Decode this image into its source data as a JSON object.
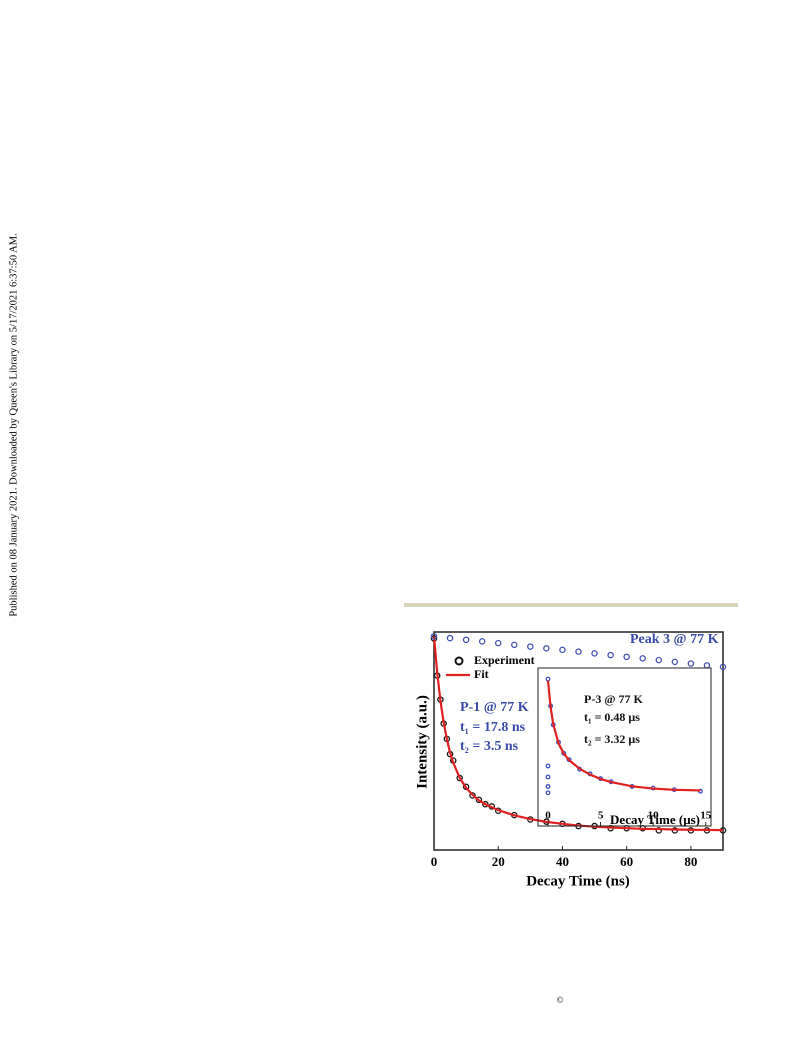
{
  "side_note": "Published on 08 January 2021. Downloaded by Queen's Library on 5/17/2021 6:37:50 AM.",
  "footer": "©",
  "chart_data": [
    {
      "type": "scatter",
      "xlabel": "Decay Time (ns)",
      "ylabel": "Intensity (a.u.)",
      "xlim": [
        0,
        90
      ],
      "ylim": [
        0,
        1
      ],
      "xticks": [
        0,
        20,
        40,
        60,
        80
      ],
      "legend": "upper left",
      "annotations": [
        "Peak 3 @ 77 K",
        "P-1 @ 77 K",
        "t₁ = 17.8 ns",
        "t₂ = 3.5 ns"
      ],
      "series": [
        {
          "name": "Experiment",
          "mode": "markers",
          "color": "#111111",
          "x": [
            0,
            1,
            2,
            3,
            4,
            5,
            6,
            8,
            10,
            12,
            14,
            16,
            18,
            20,
            25,
            30,
            35,
            40,
            45,
            50,
            55,
            60,
            65,
            70,
            75,
            80,
            85,
            90
          ],
          "values": [
            0.97,
            0.8,
            0.69,
            0.58,
            0.51,
            0.44,
            0.41,
            0.33,
            0.29,
            0.25,
            0.23,
            0.21,
            0.2,
            0.18,
            0.16,
            0.14,
            0.13,
            0.12,
            0.11,
            0.11,
            0.1,
            0.1,
            0.1,
            0.09,
            0.09,
            0.09,
            0.09,
            0.09
          ]
        },
        {
          "name": "Fit",
          "mode": "line",
          "color": "#e02020",
          "x": [
            0,
            1,
            2,
            3,
            4,
            5,
            6,
            8,
            10,
            12,
            14,
            16,
            18,
            20,
            25,
            30,
            35,
            40,
            45,
            50,
            55,
            60,
            65,
            70,
            75,
            80,
            85,
            90
          ],
          "values": [
            0.98,
            0.813,
            0.685,
            0.586,
            0.509,
            0.447,
            0.4,
            0.331,
            0.285,
            0.253,
            0.228,
            0.21,
            0.196,
            0.183,
            0.159,
            0.142,
            0.129,
            0.12,
            0.112,
            0.107,
            0.103,
            0.1,
            0.097,
            0.096,
            0.094,
            0.093,
            0.092,
            0.091
          ]
        },
        {
          "mode": "markers",
          "color": "#4050b0",
          "x": [
            0,
            5,
            10,
            15,
            20,
            25,
            30,
            35,
            40,
            45,
            50,
            55,
            60,
            65,
            70,
            75,
            80,
            85,
            90
          ],
          "values": [
            0.98,
            0.972,
            0.964,
            0.957,
            0.949,
            0.941,
            0.933,
            0.925,
            0.918,
            0.91,
            0.902,
            0.894,
            0.886,
            0.879,
            0.871,
            0.863,
            0.855,
            0.847,
            0.84
          ]
        }
      ]
    },
    {
      "type": "scatter",
      "xlabel": "Decay Time (μs)",
      "xlim": [
        -0.95,
        15.5
      ],
      "ylim": [
        0,
        1
      ],
      "xticks": [
        0,
        5,
        10,
        15
      ],
      "annotations": [
        "P-3 @ 77 K",
        "t₁ = 0.48 μs",
        "t₂ = 3.32 μs"
      ],
      "series": [
        {
          "mode": "markers",
          "color": "#4050c0",
          "x": [
            0,
            0,
            0,
            0,
            0,
            0.25,
            0.5,
            1,
            1.5,
            2,
            3,
            4,
            5,
            6,
            8,
            10,
            12,
            14.5
          ],
          "values": [
            0.38,
            0.31,
            0.25,
            0.21,
            0.93,
            0.76,
            0.64,
            0.53,
            0.46,
            0.42,
            0.36,
            0.33,
            0.3,
            0.28,
            0.25,
            0.24,
            0.23,
            0.22
          ]
        },
        {
          "mode": "line",
          "color": "#e02020",
          "x": [
            0,
            0.25,
            0.5,
            1,
            1.5,
            2,
            3,
            4,
            5,
            6,
            8,
            10,
            12,
            14.5
          ],
          "values": [
            0.92,
            0.752,
            0.645,
            0.523,
            0.458,
            0.417,
            0.363,
            0.325,
            0.298,
            0.278,
            0.251,
            0.237,
            0.229,
            0.225
          ]
        }
      ]
    }
  ]
}
